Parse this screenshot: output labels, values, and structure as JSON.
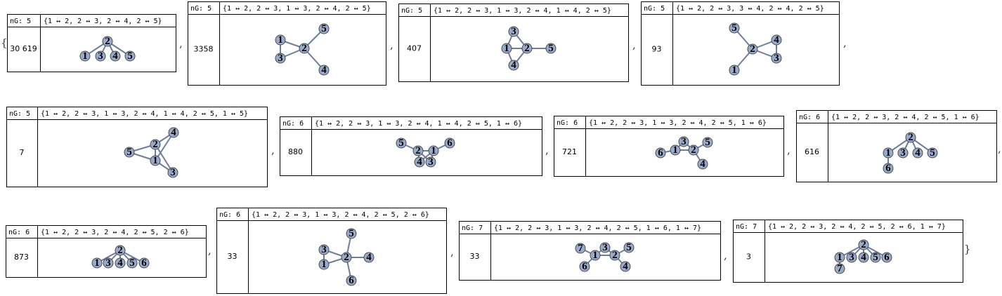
{
  "open": "{",
  "separator": ",",
  "close": "}",
  "items": [
    {
      "ng": "nG: 5",
      "edges": "{1 ↔ 2, 2 ↔ 3, 2 ↔ 4, 2 ↔ 5}",
      "count": "30 619",
      "nodes": [
        "1",
        "2",
        "3",
        "4",
        "5"
      ]
    },
    {
      "ng": "nG: 5",
      "edges": "{1 ↔ 2, 2 ↔ 3, 1 ↔ 3, 2 ↔ 4, 2 ↔ 5}",
      "count": "3358",
      "nodes": [
        "1",
        "2",
        "3",
        "4",
        "5"
      ]
    },
    {
      "ng": "nG: 5",
      "edges": "{1 ↔ 2, 2 ↔ 3, 1 ↔ 3, 2 ↔ 4, 1 ↔ 4, 2 ↔ 5}",
      "count": "407",
      "nodes": [
        "1",
        "2",
        "3",
        "4",
        "5"
      ]
    },
    {
      "ng": "nG: 5",
      "edges": "{1 ↔ 2, 2 ↔ 3, 3 ↔ 4, 2 ↔ 4, 2 ↔ 5}",
      "count": "93",
      "nodes": [
        "1",
        "2",
        "3",
        "4",
        "5"
      ]
    },
    {
      "ng": "nG: 5",
      "edges": "{1 ↔ 2, 2 ↔ 3, 1 ↔ 3, 2 ↔ 4, 1 ↔ 4, 2 ↔ 5, 1 ↔ 5}",
      "count": "7",
      "nodes": [
        "1",
        "2",
        "3",
        "4",
        "5"
      ]
    },
    {
      "ng": "nG: 6",
      "edges": "{1 ↔ 2, 2 ↔ 3, 1 ↔ 3, 2 ↔ 4, 1 ↔ 4, 2 ↔ 5, 1 ↔ 6}",
      "count": "880",
      "nodes": [
        "1",
        "2",
        "3",
        "4",
        "5",
        "6"
      ]
    },
    {
      "ng": "nG: 6",
      "edges": "{1 ↔ 2, 2 ↔ 3, 1 ↔ 3, 2 ↔ 4, 2 ↔ 5, 1 ↔ 6}",
      "count": "721",
      "nodes": [
        "1",
        "2",
        "3",
        "4",
        "5",
        "6"
      ]
    },
    {
      "ng": "nG: 6",
      "edges": "{1 ↔ 2, 2 ↔ 3, 2 ↔ 4, 2 ↔ 5, 1 ↔ 6}",
      "count": "616",
      "nodes": [
        "1",
        "2",
        "3",
        "4",
        "5",
        "6"
      ]
    },
    {
      "ng": "nG: 6",
      "edges": "{1 ↔ 2, 2 ↔ 3, 2 ↔ 4, 2 ↔ 5, 2 ↔ 6}",
      "count": "873",
      "nodes": [
        "1",
        "2",
        "3",
        "4",
        "5",
        "6"
      ]
    },
    {
      "ng": "nG: 6",
      "edges": "{1 ↔ 2, 2 ↔ 3, 1 ↔ 3, 2 ↔ 4, 2 ↔ 5, 2 ↔ 6}",
      "count": "33",
      "nodes": [
        "1",
        "2",
        "3",
        "4",
        "5",
        "6"
      ]
    },
    {
      "ng": "nG: 7",
      "edges": "{1 ↔ 2, 2 ↔ 3, 1 ↔ 3, 2 ↔ 4, 2 ↔ 5, 1 ↔ 6, 1 ↔ 7}",
      "count": "33",
      "nodes": [
        "1",
        "2",
        "3",
        "4",
        "5",
        "6",
        "7"
      ]
    },
    {
      "ng": "nG: 7",
      "edges": "{1 ↔ 2, 2 ↔ 3, 2 ↔ 4, 2 ↔ 5, 2 ↔ 6, 1 ↔ 7}",
      "count": "3",
      "nodes": [
        "1",
        "2",
        "3",
        "4",
        "5",
        "6",
        "7"
      ]
    }
  ]
}
